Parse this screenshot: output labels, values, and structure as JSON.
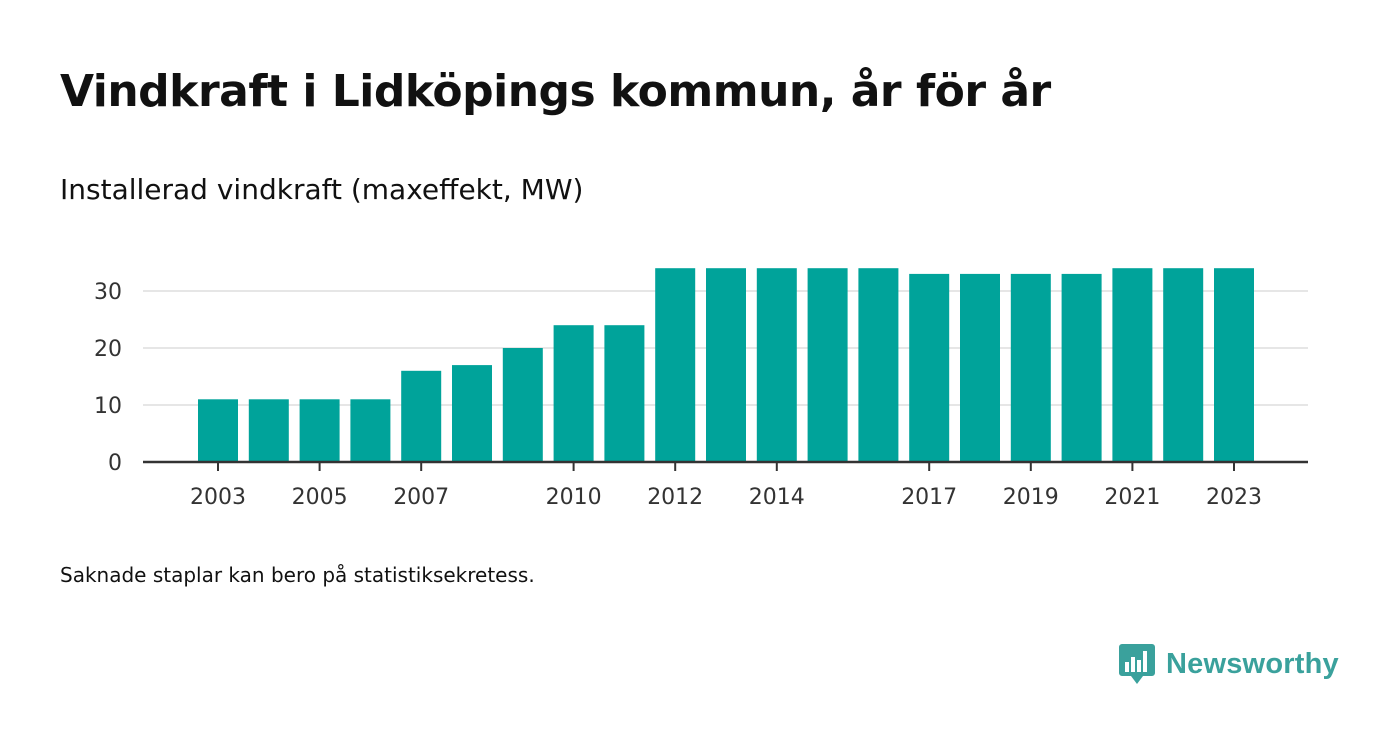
{
  "header": {
    "title": "Vindkraft i Lidköpings kommun, år för år",
    "subtitle": "Installerad vindkraft (maxeffekt, MW)"
  },
  "footer": {
    "note": "Saknade staplar kan bero på statistiksekretess.",
    "brand": "Newsworthy"
  },
  "colors": {
    "bar": "#00a39a",
    "gridline": "#dddddd",
    "axis": "#333333",
    "brand": "#3aa19c"
  },
  "chart_data": {
    "type": "bar",
    "title": "Vindkraft i Lidköpings kommun, år för år",
    "subtitle": "Installerad vindkraft (maxeffekt, MW)",
    "xlabel": "",
    "ylabel": "",
    "categories": [
      "2003",
      "2004",
      "2005",
      "2006",
      "2007",
      "2008",
      "2009",
      "2010",
      "2011",
      "2012",
      "2013",
      "2014",
      "2015",
      "2016",
      "2017",
      "2018",
      "2019",
      "2020",
      "2021",
      "2022",
      "2023"
    ],
    "values": [
      11,
      11,
      11,
      11,
      16,
      17,
      20,
      24,
      24,
      34,
      34,
      34,
      34,
      34,
      33,
      33,
      33,
      33,
      34,
      34,
      34
    ],
    "x_tick_labels": [
      "2003",
      "2005",
      "2007",
      "2010",
      "2012",
      "2014",
      "2017",
      "2019",
      "2021",
      "2023"
    ],
    "y_ticks": [
      0,
      10,
      20,
      30
    ],
    "ylim": [
      0,
      35
    ],
    "grid": true,
    "legend": "none"
  }
}
